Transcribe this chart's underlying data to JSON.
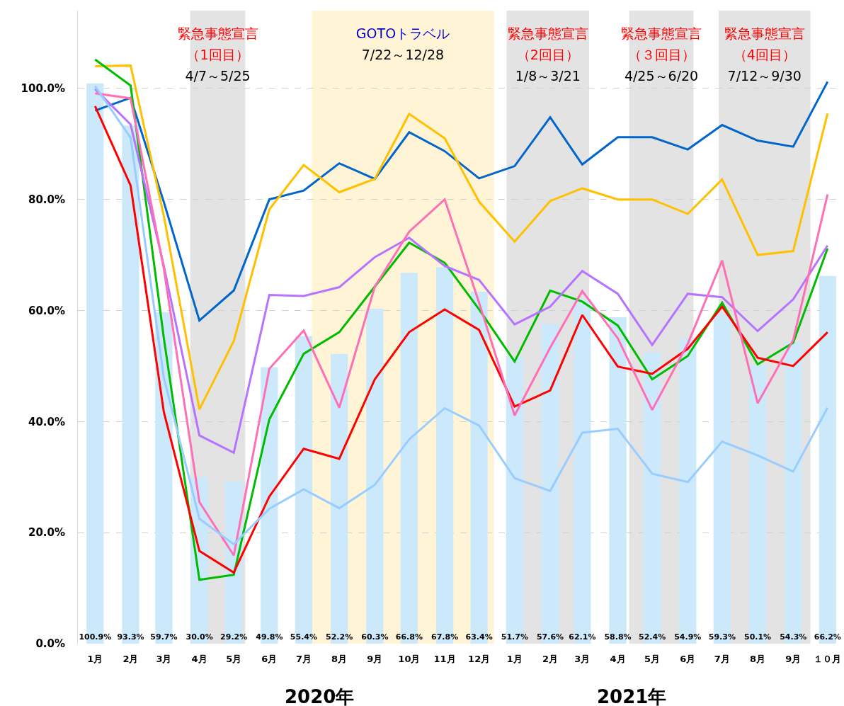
{
  "chart_data": {
    "type": "line",
    "x": [
      "2020-01-15",
      "2020-02-15",
      "2020-03-15",
      "2020-04-15",
      "2020-05-15",
      "2020-06-15",
      "2020-07-15",
      "2020-08-15",
      "2020-09-15",
      "2020-10-15",
      "2020-11-15",
      "2020-12-15",
      "2021-01-15",
      "2021-02-15",
      "2021-03-15",
      "2021-04-15",
      "2021-05-15",
      "2021-06-15",
      "2021-07-15",
      "2021-08-15",
      "2021-09-15",
      "2021-10-15"
    ],
    "xlim": [
      "2019-12-31",
      "2021-10-25"
    ],
    "xticks": [
      {
        "value": "2020-01-15",
        "label": "1月"
      },
      {
        "value": "2020-02-15",
        "label": "2月"
      },
      {
        "value": "2020-03-15",
        "label": "3月"
      },
      {
        "value": "2020-04-15",
        "label": "4月"
      },
      {
        "value": "2020-05-15",
        "label": "5月"
      },
      {
        "value": "2020-06-15",
        "label": "6月"
      },
      {
        "value": "2020-07-15",
        "label": "7月"
      },
      {
        "value": "2020-08-15",
        "label": "8月"
      },
      {
        "value": "2020-09-15",
        "label": "9月"
      },
      {
        "value": "2020-10-15",
        "label": "10月"
      },
      {
        "value": "2020-11-15",
        "label": "11月"
      },
      {
        "value": "2020-12-15",
        "label": "12月"
      },
      {
        "value": "2021-01-15",
        "label": "1月"
      },
      {
        "value": "2021-02-15",
        "label": "2月"
      },
      {
        "value": "2021-03-15",
        "label": "3月"
      },
      {
        "value": "2021-04-15",
        "label": "4月"
      },
      {
        "value": "2021-05-15",
        "label": "5月"
      },
      {
        "value": "2021-06-15",
        "label": "6月"
      },
      {
        "value": "2021-07-15",
        "label": "7月"
      },
      {
        "value": "2021-08-15",
        "label": "8月"
      },
      {
        "value": "2021-09-15",
        "label": "9月"
      },
      {
        "value": "2021-10-15",
        "label": "１０月"
      }
    ],
    "ylim": [
      0,
      114
    ],
    "yticks": [
      {
        "value": 0,
        "label": "0.0%"
      },
      {
        "value": 20,
        "label": "20.0%"
      },
      {
        "value": 40,
        "label": "40.0%"
      },
      {
        "value": 60,
        "label": "60.0%"
      },
      {
        "value": 80,
        "label": "80.0%"
      },
      {
        "value": 100,
        "label": "100.0%"
      }
    ],
    "grid": "y",
    "marker": "none",
    "line_style": "solid",
    "series": [
      {
        "type": "bar",
        "color": "#cce9fb",
        "values": [
          100.9,
          93.3,
          59.7,
          30.0,
          29.2,
          49.8,
          55.4,
          52.2,
          60.3,
          66.8,
          67.8,
          63.4,
          51.7,
          57.6,
          62.1,
          58.8,
          52.4,
          54.9,
          59.3,
          50.1,
          54.3,
          66.2
        ],
        "value_labels": [
          "100.9%",
          "93.3%",
          "59.7%",
          "30.0%",
          "29.2%",
          "49.8%",
          "55.4%",
          "52.2%",
          "60.3%",
          "66.8%",
          "67.8%",
          "63.4%",
          "51.7%",
          "57.6%",
          "62.1%",
          "58.8%",
          "52.4%",
          "54.9%",
          "59.3%",
          "50.1%",
          "54.3%",
          "66.2%"
        ]
      },
      {
        "color": "#0066cc",
        "values": [
          96.0,
          98.3,
          79.5,
          58.2,
          63.6,
          80.0,
          81.6,
          86.5,
          83.7,
          92.1,
          88.7,
          83.8,
          86.0,
          94.8,
          86.3,
          91.2,
          91.2,
          89.0,
          93.4,
          90.6,
          89.5,
          101.2
        ]
      },
      {
        "color": "#ffc000",
        "values": [
          104.0,
          104.1,
          77.0,
          42.2,
          54.5,
          78.2,
          86.2,
          81.3,
          83.7,
          95.4,
          91.0,
          79.6,
          72.4,
          79.7,
          82.0,
          80.0,
          80.0,
          77.4,
          83.6,
          70.0,
          70.7,
          95.5
        ]
      },
      {
        "color": "#00bb00",
        "values": [
          105.2,
          100.5,
          55.0,
          11.5,
          12.4,
          40.4,
          52.2,
          56.1,
          64.3,
          72.2,
          68.6,
          60.2,
          50.8,
          63.6,
          61.6,
          57.3,
          47.6,
          51.8,
          61.4,
          50.3,
          54.2,
          71.2
        ]
      },
      {
        "color": "#ff0000",
        "values": [
          96.8,
          82.5,
          41.7,
          16.7,
          12.8,
          26.5,
          35.1,
          33.3,
          47.6,
          56.1,
          60.2,
          56.5,
          42.7,
          45.6,
          59.2,
          49.9,
          48.6,
          53.1,
          60.7,
          51.5,
          50.0,
          56.1
        ]
      },
      {
        "color": "#b673ff",
        "values": [
          99.9,
          93.5,
          68.0,
          37.5,
          34.4,
          62.8,
          62.6,
          64.2,
          69.6,
          73.1,
          68.0,
          65.5,
          57.5,
          60.7,
          67.1,
          63.0,
          53.8,
          63.0,
          62.4,
          56.3,
          62.0,
          71.7
        ]
      },
      {
        "color": "#ff6fb5",
        "values": [
          99.1,
          98.2,
          67.5,
          25.5,
          15.9,
          49.5,
          56.4,
          42.5,
          64.3,
          74.2,
          80.0,
          61.4,
          41.1,
          53.3,
          63.5,
          55.0,
          42.1,
          54.0,
          69.0,
          43.3,
          54.7,
          80.9
        ]
      },
      {
        "color": "#99ccff",
        "values": [
          100.4,
          91.1,
          47.9,
          22.5,
          17.9,
          24.3,
          27.8,
          24.4,
          28.6,
          36.8,
          42.4,
          39.3,
          29.8,
          27.5,
          38.0,
          38.7,
          30.6,
          29.1,
          36.4,
          33.9,
          31.0,
          42.5
        ]
      }
    ],
    "bands": [
      {
        "axis": "x",
        "from": "2020-04-07",
        "to": "2020-05-25",
        "label": "緊急事態宣言（1回目）\n4/7～5/25",
        "color": "#e3e3e3"
      },
      {
        "axis": "x",
        "from": "2020-07-22",
        "to": "2020-12-28",
        "label": "GOTOトラベル\n7/22～12/28",
        "color": "#fff4d6"
      },
      {
        "axis": "x",
        "from": "2021-01-08",
        "to": "2021-03-21",
        "label": "緊急事態宣言（2回目）\n1/8～3/21",
        "color": "#e3e3e3"
      },
      {
        "axis": "x",
        "from": "2021-04-25",
        "to": "2021-06-20",
        "label": "緊急事態宣言（３回目）\n4/25～6/20",
        "color": "#e3e3e3"
      },
      {
        "axis": "x",
        "from": "2021-07-12",
        "to": "2021-09-30",
        "label": "緊急事態宣言（4回目）\n7/12～9/30",
        "color": "#e3e3e3"
      }
    ],
    "annotations": [
      "2020年",
      "2021年"
    ]
  }
}
